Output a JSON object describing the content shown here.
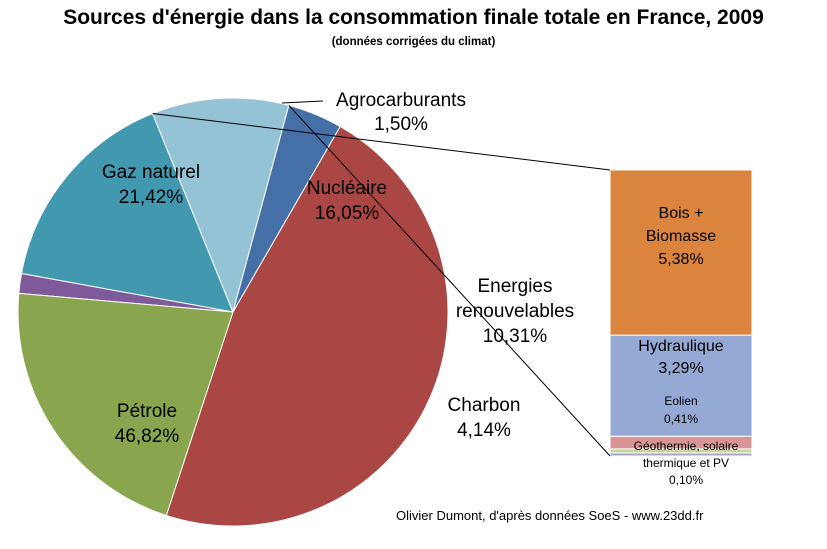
{
  "title": "Sources d'énergie dans la consommation finale totale en France, 2009",
  "subtitle": "(données corrigées du climat)",
  "credit": "Olivier Dumont, d'après données SoeS - www.23dd.fr",
  "chart_data": [
    {
      "type": "pie",
      "slices": [
        {
          "name": "Agrocarburants",
          "value": 1.5,
          "label": "1,50%",
          "color": "#7E5A9B"
        },
        {
          "name": "Nucléaire",
          "value": 16.05,
          "label": "16,05%",
          "color": "#4198AF"
        },
        {
          "name": "Energies renouvelables",
          "value": 10.31,
          "label": "10,31%",
          "color": "#93C3D4"
        },
        {
          "name": "Charbon",
          "value": 4.14,
          "label": "4,14%",
          "color": "#4570A7"
        },
        {
          "name": "Pétrole",
          "value": 46.82,
          "label": "46,82%",
          "color": "#AA4744"
        },
        {
          "name": "Gaz naturel",
          "value": 21.42,
          "label": "21,42%",
          "color": "#89A54E"
        }
      ]
    },
    {
      "type": "bar",
      "stacked": true,
      "parent": "Energies renouvelables",
      "segments": [
        {
          "name": "Bois + Biomasse",
          "value": 5.38,
          "label": "5,38%",
          "color": "#DB843D"
        },
        {
          "name": "Hydraulique",
          "value": 3.29,
          "label": "3,29%",
          "color": "#94A9D4"
        },
        {
          "name": "Eolien",
          "value": 0.41,
          "label": "0,41%",
          "color": "#D99594"
        },
        {
          "name": "",
          "value": 0.13,
          "label": "",
          "color": "#C3D69B"
        },
        {
          "name": "Géothermie, solaire thermique et PV",
          "value": 0.1,
          "label": "0,10%",
          "color": "#B3A2C7"
        }
      ]
    }
  ]
}
